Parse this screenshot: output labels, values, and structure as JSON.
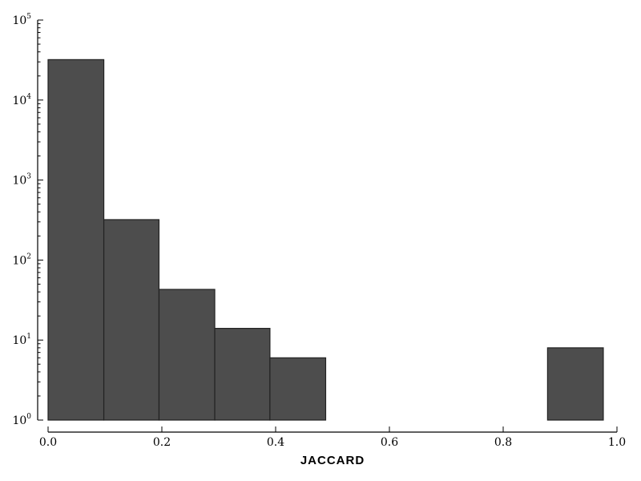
{
  "chart_data": {
    "type": "bar",
    "bins": [
      {
        "x0": 0.0,
        "x1": 0.098,
        "count": 32000
      },
      {
        "x0": 0.098,
        "x1": 0.195,
        "count": 320
      },
      {
        "x0": 0.195,
        "x1": 0.293,
        "count": 43
      },
      {
        "x0": 0.293,
        "x1": 0.39,
        "count": 14
      },
      {
        "x0": 0.39,
        "x1": 0.488,
        "count": 6
      },
      {
        "x0": 0.488,
        "x1": 0.585,
        "count": 0
      },
      {
        "x0": 0.585,
        "x1": 0.683,
        "count": 0
      },
      {
        "x0": 0.683,
        "x1": 0.78,
        "count": 0
      },
      {
        "x0": 0.78,
        "x1": 0.878,
        "count": 0
      },
      {
        "x0": 0.878,
        "x1": 0.976,
        "count": 8
      }
    ],
    "xlabel": "JACCARD",
    "ylabel": "",
    "title": "",
    "xlim": [
      0.0,
      1.0
    ],
    "ylim": [
      1,
      100000
    ],
    "yscale": "log",
    "xticks": [
      "0.0",
      "0.2",
      "0.4",
      "0.6",
      "0.8",
      "1.0"
    ],
    "xtick_values": [
      0.0,
      0.2,
      0.4,
      0.6,
      0.8,
      1.0
    ],
    "yticks_exponents": [
      0,
      1,
      2,
      3,
      4,
      5
    ],
    "ytick_base": "10",
    "bar_color": "#4d4d4d",
    "grid": false,
    "legend": "none"
  }
}
